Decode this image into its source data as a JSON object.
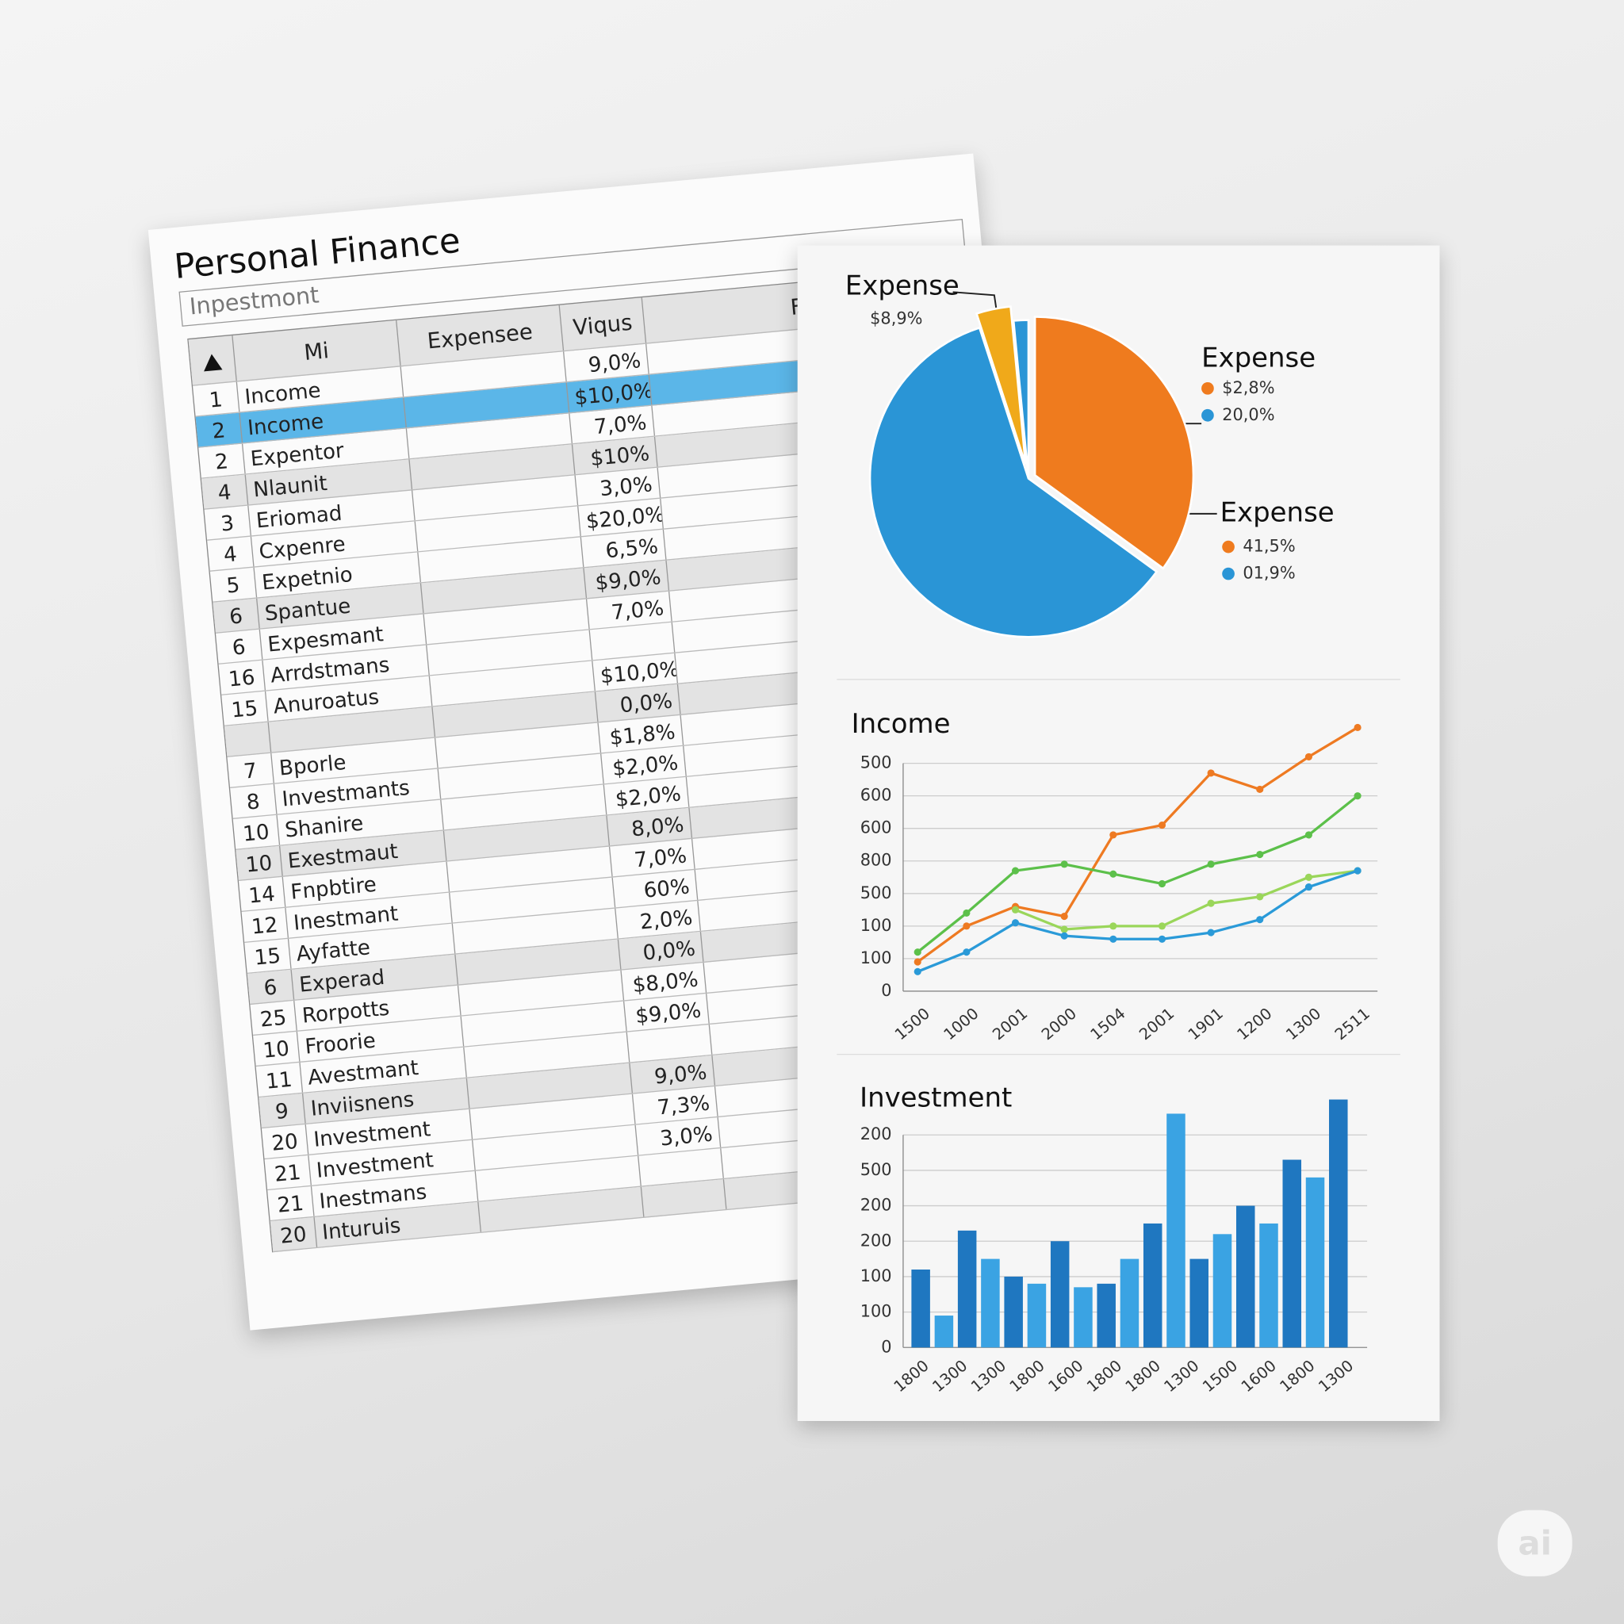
{
  "sheet": {
    "title": "Personal Finance",
    "subtitle": "Inpestmont",
    "headers": [
      "Mi",
      "Expensee",
      "Viqus",
      "Frrt"
    ],
    "selected_row": 1,
    "rows": [
      {
        "num": 1,
        "label": "Income",
        "value": "9,0%"
      },
      {
        "num": 2,
        "label": "Income",
        "value": "$10,0%"
      },
      {
        "num": 2,
        "label": "Expentor",
        "value": "7,0%"
      },
      {
        "num": 4,
        "label": "Nlaunit",
        "value": "$10%"
      },
      {
        "num": 3,
        "label": "Eriomad",
        "value": "3,0%"
      },
      {
        "num": 4,
        "label": "Cxpenre",
        "value": "$20,0%"
      },
      {
        "num": 5,
        "label": "Expetnio",
        "value": "6,5%"
      },
      {
        "num": 6,
        "label": "Spantue",
        "value": "$9,0%"
      },
      {
        "num": 6,
        "label": "Expesmant",
        "value": "7,0%"
      },
      {
        "num": 16,
        "label": "Arrdstmans"
      },
      {
        "num": 15,
        "label": "Anuroatus",
        "value": "$10,0%"
      },
      {
        "value": "0,0%"
      },
      {
        "num": 7,
        "label": "Bporle",
        "value": "$1,8%"
      },
      {
        "num": 8,
        "label": "Investmants",
        "value": "$2,0%"
      },
      {
        "num": 10,
        "label": "Shanire",
        "value": "$2,0%"
      },
      {
        "num": 10,
        "label": "Exestmaut",
        "value": "8,0%"
      },
      {
        "num": 14,
        "label": "Fnpbtire",
        "value": "7,0%"
      },
      {
        "num": 12,
        "label": "Inestmant",
        "value": "60%"
      },
      {
        "num": 15,
        "label": "Ayfatte",
        "value": "2,0%"
      },
      {
        "num": 6,
        "label": "Experad",
        "value": "0,0%"
      },
      {
        "num": 25,
        "label": "Rorpotts",
        "value": "$8,0%"
      },
      {
        "num": 10,
        "label": "Froorie",
        "value": "$9,0%"
      },
      {
        "num": 11,
        "label": "Avestmant"
      },
      {
        "num": 9,
        "label": "Inviisnens",
        "value": "9,0%"
      },
      {
        "num": 20,
        "label": "Investment",
        "value": "7,3%"
      },
      {
        "num": 21,
        "label": "Investment",
        "value": "3,0%"
      },
      {
        "num": 21,
        "label": "Inestmans"
      },
      {
        "num": 20,
        "label": "Inturuis"
      }
    ]
  },
  "dashboard": {
    "pie": {
      "type": "pie",
      "values": [
        35,
        60,
        3.5,
        1.5
      ],
      "colors": [
        "#ef7b1e",
        "#2a95d6",
        "#f0a91a",
        "#2a95d6"
      ],
      "annotations": [
        {
          "title": "Expense",
          "items": [
            {
              "text": "$8,9%"
            }
          ]
        },
        {
          "title": "Expense",
          "items": [
            {
              "text": "$2,8%",
              "color": "#ef7b1e"
            },
            {
              "text": "20,0%",
              "color": "#2a95d6"
            }
          ]
        },
        {
          "title": "Expense",
          "items": [
            {
              "text": "41,5%",
              "color": "#ef7b1e"
            },
            {
              "text": "01,9%",
              "color": "#2a95d6"
            }
          ]
        }
      ]
    },
    "line": {
      "type": "line",
      "title": "Income",
      "categories": [
        "1500",
        "1000",
        "2001",
        "2000",
        "1504",
        "2001",
        "1901",
        "1200",
        "1300",
        "2511"
      ],
      "ylim": [
        0,
        8.5
      ],
      "yticks": [
        0,
        1,
        2,
        3,
        4,
        5,
        6,
        7
      ],
      "ytick_labels": [
        "0",
        "100",
        "100",
        "500",
        "800",
        "600",
        "600",
        "500"
      ],
      "grid": true,
      "series": [
        {
          "color": "#ee7a22",
          "values": [
            0.9,
            2.0,
            2.6,
            2.3,
            4.8,
            5.1,
            6.7,
            6.2,
            7.2,
            8.1
          ]
        },
        {
          "color": "#5cc04a",
          "values": [
            1.2,
            2.4,
            3.7,
            3.9,
            3.6,
            3.3,
            3.9,
            4.2,
            4.8,
            6.0
          ]
        },
        {
          "color": "#9ad65a",
          "values": [
            null,
            null,
            2.5,
            1.9,
            2.0,
            2.0,
            2.7,
            2.9,
            3.5,
            3.7
          ]
        },
        {
          "color": "#2a9ad8",
          "values": [
            0.6,
            1.2,
            2.1,
            1.7,
            1.6,
            1.6,
            1.8,
            2.2,
            3.2,
            3.7
          ]
        }
      ]
    },
    "bar": {
      "type": "bar",
      "title": "Investment",
      "values": [
        2.2,
        0.9,
        3.3,
        2.5,
        2.0,
        1.8,
        3.0,
        1.7,
        1.8,
        2.5,
        3.5,
        6.6,
        2.5,
        3.2,
        4.0,
        3.5,
        5.3,
        4.8,
        7.0
      ],
      "colors": [
        "#1f77c0",
        "#3aa3e3"
      ],
      "ylim": [
        0,
        7.2
      ],
      "yticks": [
        0,
        1,
        2,
        3,
        4,
        5,
        6
      ],
      "ytick_labels": [
        "0",
        "100",
        "100",
        "200",
        "200",
        "500",
        "200"
      ],
      "grid": true,
      "x_labels": [
        "1800",
        "1300",
        "1300",
        "1800",
        "1600",
        "1800",
        "1800",
        "1300",
        "1500",
        "1600",
        "1800",
        "1300"
      ]
    },
    "watermark": "ai"
  }
}
